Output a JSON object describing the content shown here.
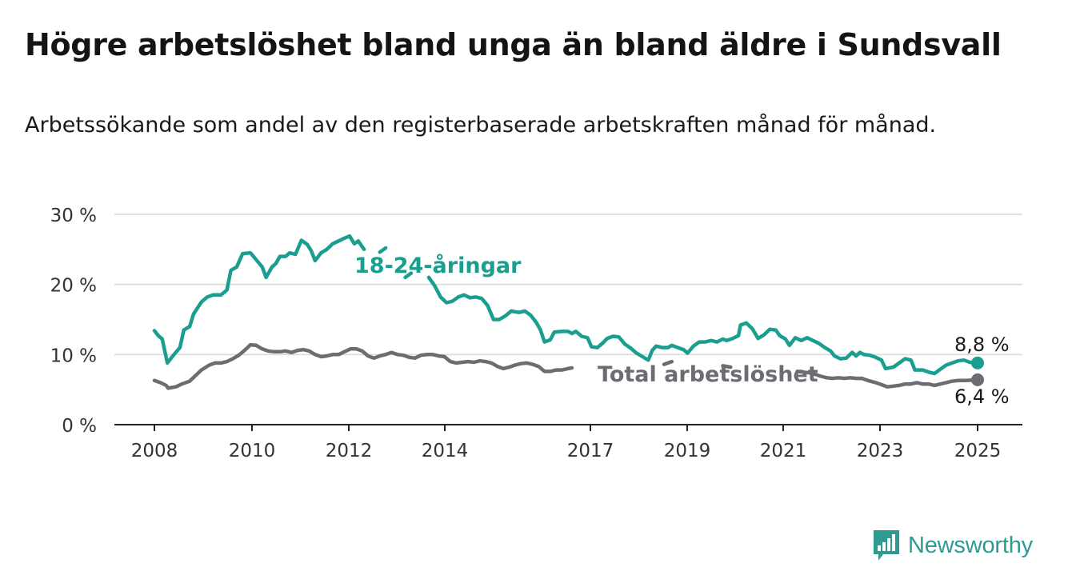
{
  "title": "Högre arbetslöshet bland unga än bland äldre i Sundsvall",
  "subtitle": "Arbetssökande som andel av den registerbaserade arbetskraften månad för månad.",
  "brand": {
    "name": "Newsworthy",
    "icon": "newsworthy-bar-chart-icon",
    "color": "#2f9a90"
  },
  "colors": {
    "youth": "#1a9e8f",
    "total": "#6e6c72",
    "grid": "#d9d9d9",
    "axis": "#222222"
  },
  "chart_data": {
    "type": "line",
    "ylim": [
      0,
      30
    ],
    "yticks": [
      0,
      10,
      20,
      30
    ],
    "ytick_labels": [
      "0 %",
      "10 %",
      "20 %",
      "30 %"
    ],
    "xticks": [
      2008,
      2010,
      2012,
      2014,
      2017,
      2019,
      2021,
      2023,
      2025
    ],
    "xtick_labels": [
      "2008",
      "2010",
      "2012",
      "2014",
      "2017",
      "2019",
      "2021",
      "2023",
      "2025"
    ],
    "grid": true,
    "series": [
      {
        "name": "18-24-åringar",
        "end_label": "8,8 %",
        "points": [
          [
            2008.0,
            13.4
          ],
          [
            2008.1,
            12.7
          ],
          [
            2008.2,
            12.2
          ],
          [
            2008.33,
            8.8
          ],
          [
            2008.5,
            10.0
          ],
          [
            2008.65,
            11.0
          ],
          [
            2008.75,
            13.5
          ],
          [
            2008.9,
            14.0
          ],
          [
            2009.0,
            15.8
          ],
          [
            2009.2,
            17.5
          ],
          [
            2009.35,
            18.2
          ],
          [
            2009.5,
            18.5
          ],
          [
            2009.7,
            18.5
          ],
          [
            2009.85,
            19.2
          ],
          [
            2009.95,
            22.0
          ],
          [
            2010.1,
            22.5
          ],
          [
            2010.25,
            24.4
          ],
          [
            2010.45,
            24.5
          ],
          [
            2010.6,
            23.5
          ],
          [
            2010.75,
            22.5
          ],
          [
            2010.85,
            21.0
          ],
          [
            2011.0,
            22.5
          ],
          [
            2011.1,
            23.0
          ],
          [
            2011.2,
            24.0
          ],
          [
            2011.35,
            24.0
          ],
          [
            2011.45,
            24.5
          ],
          [
            2011.6,
            24.3
          ],
          [
            2011.75,
            26.3
          ],
          [
            2011.9,
            25.7
          ],
          [
            2012.0,
            24.8
          ],
          [
            2012.1,
            23.4
          ],
          [
            2012.25,
            24.5
          ],
          [
            2012.4,
            25.0
          ],
          [
            2012.55,
            25.8
          ],
          [
            2012.7,
            26.2
          ],
          [
            2012.85,
            26.6
          ],
          [
            2012.98,
            26.9
          ],
          [
            2013.1,
            25.8
          ],
          [
            2013.2,
            26.2
          ],
          [
            2013.35,
            25.0
          ]
        ],
        "points_b": [
          [
            2013.75,
            24.6
          ],
          [
            2013.9,
            25.2
          ]
        ],
        "points_c": [
          [
            2014.4,
            21.0
          ],
          [
            2014.55,
            21.6
          ]
        ],
        "points_d": [
          [
            2015.0,
            21.0
          ],
          [
            2015.15,
            19.8
          ],
          [
            2015.3,
            18.2
          ],
          [
            2015.45,
            17.4
          ],
          [
            2015.6,
            17.6
          ],
          [
            2015.75,
            18.2
          ],
          [
            2015.9,
            18.5
          ],
          [
            2016.05,
            18.1
          ],
          [
            2016.2,
            18.2
          ],
          [
            2016.35,
            18.0
          ],
          [
            2016.5,
            17.0
          ],
          [
            2016.65,
            15.0
          ],
          [
            2016.8,
            15.0
          ],
          [
            2016.95,
            15.5
          ],
          [
            2017.1,
            16.2
          ],
          [
            2017.3,
            16.0
          ],
          [
            2017.45,
            16.2
          ],
          [
            2017.6,
            15.6
          ],
          [
            2017.75,
            14.5
          ],
          [
            2017.85,
            13.5
          ],
          [
            2017.95,
            11.8
          ],
          [
            2018.1,
            12.1
          ],
          [
            2018.2,
            13.2
          ],
          [
            2018.4,
            13.3
          ],
          [
            2018.55,
            13.3
          ],
          [
            2018.65,
            13.0
          ],
          [
            2018.75,
            13.3
          ],
          [
            2018.9,
            12.6
          ],
          [
            2019.05,
            12.4
          ],
          [
            2019.15,
            11.1
          ],
          [
            2019.3,
            11.0
          ],
          [
            2019.45,
            11.7
          ],
          [
            2019.55,
            12.3
          ],
          [
            2019.7,
            12.6
          ],
          [
            2019.85,
            12.5
          ],
          [
            2020.0,
            11.5
          ],
          [
            2020.15,
            10.9
          ],
          [
            2020.3,
            10.2
          ],
          [
            2020.45,
            9.7
          ],
          [
            2020.6,
            9.2
          ],
          [
            2020.7,
            10.6
          ],
          [
            2020.8,
            11.2
          ],
          [
            2020.95,
            11.0
          ],
          [
            2021.1,
            11.0
          ],
          [
            2021.2,
            11.3
          ],
          [
            2021.35,
            11.0
          ],
          [
            2021.5,
            10.7
          ],
          [
            2021.6,
            10.2
          ],
          [
            2021.75,
            11.2
          ],
          [
            2021.9,
            11.8
          ],
          [
            2022.05,
            11.8
          ],
          [
            2022.2,
            12.0
          ],
          [
            2022.35,
            11.8
          ],
          [
            2022.5,
            12.2
          ],
          [
            2022.6,
            12.0
          ],
          [
            2022.75,
            12.3
          ],
          [
            2022.9,
            12.7
          ],
          [
            2022.95,
            14.2
          ],
          [
            2023.1,
            14.5
          ],
          [
            2023.25,
            13.7
          ],
          [
            2023.4,
            12.3
          ],
          [
            2023.55,
            12.8
          ],
          [
            2023.7,
            13.6
          ],
          [
            2023.85,
            13.5
          ],
          [
            2023.95,
            12.7
          ],
          [
            2024.1,
            12.2
          ],
          [
            2024.2,
            11.3
          ],
          [
            2024.35,
            12.4
          ],
          [
            2024.5,
            12.0
          ],
          [
            2024.65,
            12.4
          ],
          [
            2024.8,
            12.0
          ],
          [
            2024.95,
            11.6
          ],
          [
            2025.1,
            11.0
          ],
          [
            2025.25,
            10.5
          ],
          [
            2025.35,
            9.8
          ],
          [
            2025.5,
            9.4
          ],
          [
            2025.65,
            9.5
          ],
          [
            2025.8,
            10.3
          ],
          [
            2025.9,
            9.8
          ],
          [
            2026.0,
            10.3
          ],
          [
            2026.1,
            10.0
          ],
          [
            2026.25,
            9.9
          ],
          [
            2026.4,
            9.6
          ],
          [
            2026.55,
            9.2
          ],
          [
            2026.65,
            8.0
          ],
          [
            2026.85,
            8.2
          ],
          [
            2027.0,
            8.8
          ],
          [
            2027.15,
            9.4
          ],
          [
            2027.3,
            9.2
          ],
          [
            2027.4,
            7.8
          ],
          [
            2027.6,
            7.8
          ],
          [
            2027.75,
            7.5
          ],
          [
            2027.9,
            7.3
          ],
          [
            2028.05,
            7.9
          ],
          [
            2028.2,
            8.5
          ],
          [
            2028.35,
            8.8
          ],
          [
            2028.5,
            9.1
          ],
          [
            2028.65,
            9.2
          ],
          [
            2028.8,
            8.9
          ],
          [
            2029.0,
            8.8
          ]
        ]
      },
      {
        "name": "Total arbetslöshet",
        "end_label": "6,4 %",
        "points": [
          [
            2008.0,
            6.3
          ],
          [
            2008.15,
            6.0
          ],
          [
            2008.3,
            5.6
          ],
          [
            2008.35,
            5.2
          ],
          [
            2008.55,
            5.4
          ],
          [
            2008.7,
            5.8
          ],
          [
            2008.9,
            6.2
          ],
          [
            2009.05,
            7.0
          ],
          [
            2009.2,
            7.8
          ],
          [
            2009.4,
            8.5
          ],
          [
            2009.55,
            8.8
          ],
          [
            2009.7,
            8.8
          ],
          [
            2009.85,
            9.0
          ],
          [
            2010.0,
            9.4
          ],
          [
            2010.15,
            9.9
          ],
          [
            2010.3,
            10.6
          ],
          [
            2010.45,
            11.4
          ],
          [
            2010.6,
            11.3
          ],
          [
            2010.75,
            10.8
          ],
          [
            2010.9,
            10.5
          ],
          [
            2011.05,
            10.4
          ],
          [
            2011.2,
            10.4
          ],
          [
            2011.35,
            10.5
          ],
          [
            2011.5,
            10.3
          ],
          [
            2011.65,
            10.6
          ],
          [
            2011.8,
            10.7
          ],
          [
            2011.95,
            10.5
          ],
          [
            2012.1,
            10.0
          ],
          [
            2012.25,
            9.7
          ],
          [
            2012.4,
            9.8
          ],
          [
            2012.55,
            10.0
          ],
          [
            2012.7,
            10.0
          ],
          [
            2012.85,
            10.4
          ],
          [
            2013.0,
            10.8
          ],
          [
            2013.15,
            10.8
          ],
          [
            2013.3,
            10.5
          ],
          [
            2013.45,
            9.8
          ],
          [
            2013.6,
            9.5
          ],
          [
            2013.75,
            9.8
          ],
          [
            2013.9,
            10.0
          ],
          [
            2014.05,
            10.3
          ],
          [
            2014.2,
            10.0
          ],
          [
            2014.35,
            9.9
          ],
          [
            2014.5,
            9.6
          ],
          [
            2014.65,
            9.5
          ],
          [
            2014.8,
            9.9
          ],
          [
            2014.95,
            10.0
          ],
          [
            2015.1,
            10.0
          ],
          [
            2015.25,
            9.8
          ],
          [
            2015.4,
            9.7
          ],
          [
            2015.55,
            9.0
          ],
          [
            2015.7,
            8.8
          ],
          [
            2015.85,
            8.9
          ],
          [
            2016.0,
            9.0
          ],
          [
            2016.15,
            8.9
          ],
          [
            2016.3,
            9.1
          ],
          [
            2016.45,
            9.0
          ],
          [
            2016.6,
            8.8
          ],
          [
            2016.75,
            8.3
          ],
          [
            2016.9,
            8.0
          ],
          [
            2017.05,
            8.2
          ],
          [
            2017.2,
            8.5
          ],
          [
            2017.35,
            8.7
          ],
          [
            2017.5,
            8.8
          ],
          [
            2017.65,
            8.6
          ],
          [
            2017.8,
            8.3
          ],
          [
            2017.95,
            7.6
          ],
          [
            2018.1,
            7.6
          ],
          [
            2018.25,
            7.8
          ],
          [
            2018.4,
            7.8
          ],
          [
            2018.55,
            8.0
          ],
          [
            2018.65,
            8.1
          ]
        ],
        "points_b": [
          [
            2021.0,
            8.6
          ],
          [
            2021.2,
            9.0
          ]
        ],
        "points_c": [
          [
            2022.5,
            8.4
          ],
          [
            2022.7,
            8.2
          ]
        ],
        "points_d": [
          [
            2024.4,
            7.6
          ],
          [
            2024.55,
            7.5
          ],
          [
            2024.7,
            7.4
          ],
          [
            2024.85,
            7.2
          ],
          [
            2025.0,
            6.9
          ],
          [
            2025.15,
            6.7
          ],
          [
            2025.3,
            6.6
          ],
          [
            2025.45,
            6.7
          ],
          [
            2025.6,
            6.6
          ],
          [
            2025.75,
            6.7
          ],
          [
            2025.9,
            6.6
          ],
          [
            2026.05,
            6.6
          ],
          [
            2026.2,
            6.3
          ],
          [
            2026.4,
            6.0
          ],
          [
            2026.55,
            5.7
          ],
          [
            2026.7,
            5.4
          ],
          [
            2026.85,
            5.5
          ],
          [
            2027.0,
            5.6
          ],
          [
            2027.15,
            5.8
          ],
          [
            2027.3,
            5.8
          ],
          [
            2027.45,
            6.0
          ],
          [
            2027.6,
            5.8
          ],
          [
            2027.75,
            5.8
          ],
          [
            2027.9,
            5.6
          ],
          [
            2028.05,
            5.8
          ],
          [
            2028.2,
            6.0
          ],
          [
            2028.35,
            6.2
          ],
          [
            2028.5,
            6.3
          ],
          [
            2028.7,
            6.3
          ],
          [
            2029.0,
            6.4
          ]
        ]
      }
    ]
  }
}
